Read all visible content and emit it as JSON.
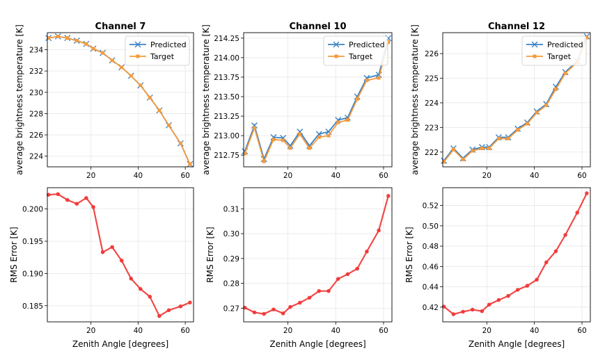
{
  "chart_data": [
    {
      "type": "line",
      "title": "Channel 7",
      "xlabel": "",
      "ylabel": "average brightness temperature [K]",
      "xlim": [
        1.5,
        63.5
      ],
      "ylim": [
        223.0,
        235.6
      ],
      "xticks": [
        20,
        40,
        60
      ],
      "yticks": [
        224,
        226,
        228,
        230,
        232,
        234
      ],
      "ytick_labels": [
        "224",
        "226",
        "228",
        "230",
        "232",
        "234"
      ],
      "x": [
        2,
        6,
        10,
        14,
        18,
        21,
        25,
        29,
        33,
        37,
        41,
        45,
        49,
        53,
        58,
        62
      ],
      "series": [
        {
          "name": "Predicted",
          "color": "#3b82c4",
          "marker": "x",
          "values": [
            235.1,
            235.25,
            235.1,
            234.85,
            234.55,
            234.1,
            233.7,
            233.0,
            232.35,
            231.55,
            230.65,
            229.5,
            228.3,
            226.9,
            225.2,
            223.25
          ]
        },
        {
          "name": "Target",
          "color": "#f59a3c",
          "marker": "s",
          "values": [
            235.1,
            235.25,
            235.1,
            234.85,
            234.55,
            234.1,
            233.7,
            233.0,
            232.35,
            231.55,
            230.65,
            229.5,
            228.3,
            226.9,
            225.2,
            223.25
          ]
        }
      ],
      "legend": "top-right"
    },
    {
      "type": "line",
      "title": "Channel 10",
      "xlabel": "",
      "ylabel": "average brightness temperature [K]",
      "xlim": [
        1.5,
        63.5
      ],
      "ylim": [
        212.6,
        214.32
      ],
      "xticks": [
        20,
        40,
        60
      ],
      "yticks": [
        212.75,
        213.0,
        213.25,
        213.5,
        213.75,
        214.0,
        214.25
      ],
      "ytick_labels": [
        "212.75",
        "213.00",
        "213.25",
        "213.50",
        "213.75",
        "214.00",
        "214.25"
      ],
      "x": [
        2,
        6,
        10,
        14,
        18,
        21,
        25,
        29,
        33,
        37,
        41,
        45,
        49,
        53,
        58,
        62
      ],
      "series": [
        {
          "name": "Predicted",
          "color": "#3b82c4",
          "marker": "x",
          "values": [
            212.8,
            213.13,
            212.7,
            212.98,
            212.97,
            212.87,
            213.05,
            212.87,
            213.02,
            213.05,
            213.2,
            213.23,
            213.5,
            213.74,
            213.78,
            214.25
          ]
        },
        {
          "name": "Target",
          "color": "#f59a3c",
          "marker": "s",
          "values": [
            212.77,
            213.1,
            212.67,
            212.95,
            212.94,
            212.84,
            213.02,
            212.84,
            212.98,
            213.0,
            213.17,
            213.2,
            213.47,
            213.71,
            213.74,
            214.2
          ]
        }
      ],
      "legend": "top-left"
    },
    {
      "type": "line",
      "title": "Channel 12",
      "xlabel": "",
      "ylabel": "average brightness temperature [K]",
      "xlim": [
        1.5,
        63.5
      ],
      "ylim": [
        221.4,
        226.85
      ],
      "xticks": [
        20,
        40,
        60
      ],
      "yticks": [
        222,
        223,
        224,
        225,
        226
      ],
      "ytick_labels": [
        "222",
        "223",
        "224",
        "225",
        "226"
      ],
      "x": [
        2,
        6,
        10,
        14,
        18,
        21,
        25,
        29,
        33,
        37,
        41,
        45,
        49,
        53,
        58,
        62
      ],
      "series": [
        {
          "name": "Predicted",
          "color": "#3b82c4",
          "marker": "x",
          "values": [
            221.65,
            222.15,
            221.75,
            222.1,
            222.2,
            222.2,
            222.6,
            222.6,
            222.95,
            223.2,
            223.65,
            223.95,
            224.65,
            225.25,
            225.7,
            226.7
          ]
        },
        {
          "name": "Target",
          "color": "#f59a3c",
          "marker": "s",
          "values": [
            221.6,
            222.1,
            221.7,
            222.05,
            222.15,
            222.15,
            222.55,
            222.55,
            222.9,
            223.15,
            223.6,
            223.9,
            224.55,
            225.2,
            225.65,
            226.65
          ]
        }
      ],
      "legend": "top-left"
    },
    {
      "type": "line",
      "title": "",
      "xlabel": "Zenith Angle [degrees]",
      "ylabel": "RMS Error [K]",
      "xlim": [
        1.5,
        63.5
      ],
      "ylim": [
        0.1825,
        0.2033
      ],
      "xticks": [
        20,
        40,
        60
      ],
      "yticks": [
        0.185,
        0.19,
        0.195,
        0.2
      ],
      "ytick_labels": [
        "0.185",
        "0.190",
        "0.195",
        "0.200"
      ],
      "x": [
        2,
        6,
        10,
        14,
        18,
        21,
        25,
        29,
        33,
        37,
        41,
        45,
        49,
        53,
        58,
        62
      ],
      "series": [
        {
          "name": "RMS Error",
          "color": "#f03434",
          "marker": "o",
          "values": [
            0.2022,
            0.2023,
            0.2014,
            0.2008,
            0.2017,
            0.2003,
            0.1933,
            0.1941,
            0.192,
            0.1892,
            0.1876,
            0.1864,
            0.1834,
            0.1843,
            0.1849,
            0.1855
          ]
        }
      ]
    },
    {
      "type": "line",
      "title": "",
      "xlabel": "Zenith Angle [degrees]",
      "ylabel": "RMS Error [K]",
      "xlim": [
        1.5,
        63.5
      ],
      "ylim": [
        0.2645,
        0.3185
      ],
      "xticks": [
        20,
        40,
        60
      ],
      "yticks": [
        0.27,
        0.28,
        0.29,
        0.3,
        0.31
      ],
      "ytick_labels": [
        "0.27",
        "0.28",
        "0.29",
        "0.30",
        "0.31"
      ],
      "x": [
        2,
        6,
        10,
        14,
        18,
        21,
        25,
        29,
        33,
        37,
        41,
        45,
        49,
        53,
        58,
        62
      ],
      "series": [
        {
          "name": "RMS Error",
          "color": "#f03434",
          "marker": "o",
          "values": [
            0.2702,
            0.2683,
            0.2677,
            0.2695,
            0.2679,
            0.2705,
            0.2722,
            0.2742,
            0.2769,
            0.2769,
            0.2818,
            0.2837,
            0.2859,
            0.2928,
            0.3013,
            0.3152
          ]
        }
      ]
    },
    {
      "type": "line",
      "title": "",
      "xlabel": "Zenith Angle [degrees]",
      "ylabel": "RMS Error [K]",
      "xlim": [
        1.5,
        63.5
      ],
      "ylim": [
        0.4055,
        0.5375
      ],
      "xticks": [
        20,
        40,
        60
      ],
      "yticks": [
        0.42,
        0.44,
        0.46,
        0.48,
        0.5,
        0.52
      ],
      "ytick_labels": [
        "0.42",
        "0.44",
        "0.46",
        "0.48",
        "0.50",
        "0.52"
      ],
      "x": [
        2,
        6,
        10,
        14,
        18,
        21,
        25,
        29,
        33,
        37,
        41,
        45,
        49,
        53,
        58,
        62
      ],
      "series": [
        {
          "name": "RMS Error",
          "color": "#f03434",
          "marker": "o",
          "values": [
            0.4205,
            0.413,
            0.4155,
            0.4175,
            0.416,
            0.4225,
            0.427,
            0.431,
            0.437,
            0.441,
            0.447,
            0.464,
            0.475,
            0.491,
            0.513,
            0.532
          ]
        }
      ]
    }
  ]
}
